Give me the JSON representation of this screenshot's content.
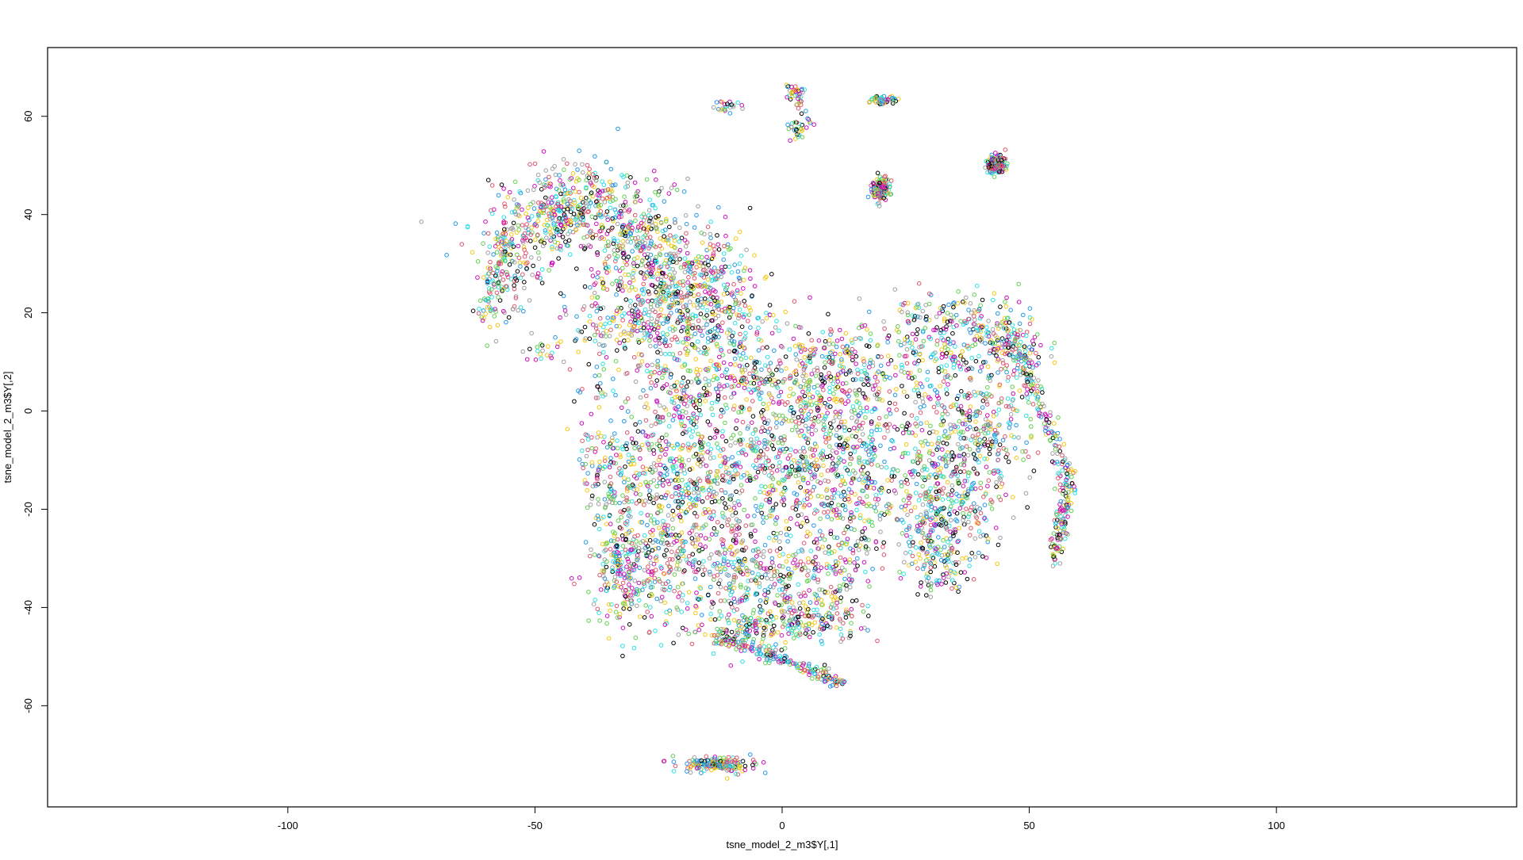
{
  "chart_data": {
    "type": "scatter",
    "title": "",
    "xlabel": "tsne_model_2_m3$Y[,1]",
    "ylabel": "tsne_model_2_m3$Y[,2]",
    "xlim": [
      -148.6,
      148.6
    ],
    "ylim": [
      -80.6,
      74.0
    ],
    "x_ticks": [
      -100,
      -50,
      0,
      50,
      100
    ],
    "y_ticks": [
      -60,
      -40,
      -20,
      0,
      20,
      40,
      60
    ],
    "x_tick_labels": [
      "-100",
      "-50",
      "0",
      "50",
      "100"
    ],
    "y_tick_labels": [
      "-60",
      "-40",
      "-20",
      "0",
      "20",
      "40",
      "60"
    ],
    "grid": false,
    "legend": "none",
    "marker": "open-circle",
    "point_colors": [
      "#000000",
      "#df536b",
      "#61d04f",
      "#2297e6",
      "#28e2e5",
      "#cd0bbc",
      "#f5c710",
      "#9e9e9e"
    ],
    "point_count_approx": 6000,
    "clusters": [
      {
        "cx": -52,
        "cy": 36,
        "sx": 6,
        "sy": 6,
        "n": 140
      },
      {
        "cx": -56,
        "cy": 27,
        "sx": 2.5,
        "sy": 6,
        "n": 90
      },
      {
        "cx": -47,
        "cy": 40,
        "sx": 4,
        "sy": 5,
        "n": 140
      },
      {
        "cx": -40,
        "cy": 43,
        "sx": 5,
        "sy": 4,
        "n": 160
      },
      {
        "cx": -32,
        "cy": 38,
        "sx": 5,
        "sy": 5,
        "n": 170
      },
      {
        "cx": -24,
        "cy": 32,
        "sx": 6,
        "sy": 5,
        "n": 200
      },
      {
        "cx": -15,
        "cy": 26,
        "sx": 6,
        "sy": 5,
        "n": 170
      },
      {
        "cx": -30,
        "cy": 22,
        "sx": 5,
        "sy": 7,
        "n": 150
      },
      {
        "cx": -22,
        "cy": 18,
        "sx": 6,
        "sy": 6,
        "n": 220
      },
      {
        "cx": -12,
        "cy": 16,
        "sx": 6,
        "sy": 6,
        "n": 160
      },
      {
        "cx": -38,
        "cy": 18,
        "sx": 3,
        "sy": 4,
        "n": 50
      },
      {
        "cx": -47,
        "cy": 13,
        "sx": 2,
        "sy": 1.5,
        "n": 20
      },
      {
        "cx": -36,
        "cy": 4,
        "sx": 2,
        "sy": 2,
        "n": 20
      },
      {
        "cx": -20,
        "cy": 3,
        "sx": 5,
        "sy": 5,
        "n": 160
      },
      {
        "cx": -6,
        "cy": 6,
        "sx": 5,
        "sy": 4,
        "n": 130
      },
      {
        "cx": 6,
        "cy": 8,
        "sx": 5,
        "sy": 5,
        "n": 160
      },
      {
        "cx": 16,
        "cy": 10,
        "sx": 6,
        "sy": 5,
        "n": 140
      },
      {
        "cx": 2,
        "cy": -5,
        "sx": 6,
        "sy": 5,
        "n": 160
      },
      {
        "cx": 18,
        "cy": -4,
        "sx": 5,
        "sy": 5,
        "n": 140
      },
      {
        "cx": -32,
        "cy": -12,
        "sx": 4,
        "sy": 6,
        "n": 150
      },
      {
        "cx": -22,
        "cy": -14,
        "sx": 5,
        "sy": 5,
        "n": 180
      },
      {
        "cx": -10,
        "cy": -12,
        "sx": 6,
        "sy": 5,
        "n": 190
      },
      {
        "cx": 4,
        "cy": -14,
        "sx": 6,
        "sy": 6,
        "n": 190
      },
      {
        "cx": 16,
        "cy": -16,
        "sx": 5,
        "sy": 6,
        "n": 160
      },
      {
        "cx": -32,
        "cy": -32,
        "sx": 4,
        "sy": 6,
        "n": 180
      },
      {
        "cx": -24,
        "cy": -30,
        "sx": 5,
        "sy": 6,
        "n": 180
      },
      {
        "cx": -12,
        "cy": -28,
        "sx": 6,
        "sy": 6,
        "n": 190
      },
      {
        "cx": -2,
        "cy": -34,
        "sx": 6,
        "sy": 5,
        "n": 180
      },
      {
        "cx": 10,
        "cy": -30,
        "sx": 5,
        "sy": 6,
        "n": 170
      },
      {
        "cx": -6,
        "cy": -44,
        "sx": 7,
        "sy": 2.5,
        "n": 160
      },
      {
        "cx": 8,
        "cy": -42,
        "sx": 5,
        "sy": 3,
        "n": 110
      },
      {
        "cx": 30,
        "cy": 10,
        "sx": 5,
        "sy": 5,
        "n": 110
      },
      {
        "cx": 38,
        "cy": 16,
        "sx": 5,
        "sy": 4,
        "n": 130
      },
      {
        "cx": 46,
        "cy": 12,
        "sx": 4,
        "sy": 5,
        "n": 110
      },
      {
        "cx": 34,
        "cy": -6,
        "sx": 5,
        "sy": 6,
        "n": 160
      },
      {
        "cx": 42,
        "cy": -4,
        "sx": 5,
        "sy": 6,
        "n": 150
      },
      {
        "cx": 30,
        "cy": -20,
        "sx": 4,
        "sy": 6,
        "n": 160
      },
      {
        "cx": 38,
        "cy": -18,
        "sx": 5,
        "sy": 6,
        "n": 150
      },
      {
        "cx": 32,
        "cy": -30,
        "sx": 3,
        "sy": 4,
        "n": 110
      },
      {
        "cx": 28,
        "cy": 20,
        "sx": 4,
        "sy": 2,
        "n": 40
      },
      {
        "cx": 20,
        "cy": 45,
        "sx": 1,
        "sy": 1.2,
        "n": 120
      },
      {
        "cx": 43.3,
        "cy": 50.2,
        "sx": 0.9,
        "sy": 0.9,
        "n": 160
      },
      {
        "cx": 20.5,
        "cy": 63.3,
        "sx": 1.8,
        "sy": 0.4,
        "n": 60
      },
      {
        "cx": 2.8,
        "cy": 64.2,
        "sx": 0.8,
        "sy": 1.2,
        "n": 25
      },
      {
        "cx": 2.8,
        "cy": 57.2,
        "sx": 0.8,
        "sy": 1.2,
        "n": 25
      },
      {
        "cx": -11,
        "cy": 61.8,
        "sx": 2,
        "sy": 0.6,
        "n": 25
      },
      {
        "cx": -13.5,
        "cy": -72,
        "sx": 3.5,
        "sy": 0.8,
        "n": 170
      }
    ],
    "arcs": [
      {
        "from": [
          -14,
          -45.5
        ],
        "to": [
          12,
          -55
        ],
        "sd": 0.7,
        "n": 200
      },
      {
        "from": [
          45,
          19
        ],
        "to": [
          58,
          -14
        ],
        "sd": 0.9,
        "n": 170
      },
      {
        "from": [
          58,
          -14
        ],
        "to": [
          55,
          -31
        ],
        "sd": 0.9,
        "n": 120
      },
      {
        "from": [
          -61,
          19
        ],
        "to": [
          -55,
          37
        ],
        "sd": 0.9,
        "n": 60
      },
      {
        "from": [
          -40,
          -5
        ],
        "to": [
          -30,
          -40
        ],
        "sd": 1.5,
        "n": 80
      },
      {
        "from": [
          0,
          68
        ],
        "to": [
          6,
          58
        ],
        "sd": 0.4,
        "n": 20
      }
    ]
  }
}
